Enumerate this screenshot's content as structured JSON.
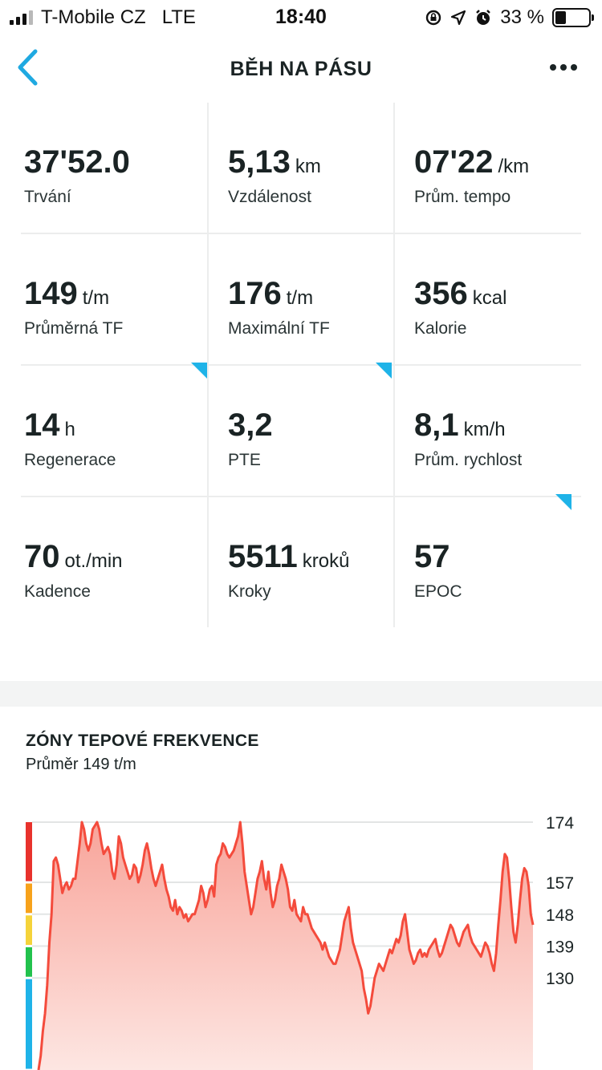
{
  "status_bar": {
    "carrier": "T-Mobile CZ",
    "network": "LTE",
    "time": "18:40",
    "battery": "33 %",
    "battery_level": 0.33
  },
  "nav": {
    "title": "BĚH NA PÁSU"
  },
  "stats": [
    {
      "value": "37'52.0",
      "unit": "",
      "label": "Trvání"
    },
    {
      "value": "5,13",
      "unit": "km",
      "label": "Vzdálenost"
    },
    {
      "value": "07'22",
      "unit": "/km",
      "label": "Prům. tempo"
    },
    {
      "value": "149",
      "unit": "t/m",
      "label": "Průměrná TF"
    },
    {
      "value": "176",
      "unit": "t/m",
      "label": "Maximální TF"
    },
    {
      "value": "356",
      "unit": "kcal",
      "label": "Kalorie"
    },
    {
      "value": "14",
      "unit": "h",
      "label": "Regenerace"
    },
    {
      "value": "3,2",
      "unit": "",
      "label": "PTE"
    },
    {
      "value": "8,1",
      "unit": "km/h",
      "label": "Prům. rychlost"
    },
    {
      "value": "70",
      "unit": "ot./min",
      "label": "Kadence"
    },
    {
      "value": "5511",
      "unit": "kroků",
      "label": "Kroky"
    },
    {
      "value": "57",
      "unit": "",
      "label": "EPOC"
    }
  ],
  "hr_zones": {
    "title": "ZÓNY TEPOVÉ FREKVENCE",
    "subtitle": "Průměr 149 t/m"
  },
  "chart_data": {
    "type": "area",
    "y_ticks": [
      174,
      157,
      148,
      139,
      130
    ],
    "ylim": [
      104,
      174
    ],
    "zone_colors": [
      "#e8322c",
      "#f7a21b",
      "#f5d33a",
      "#22c24d",
      "#1fb3e8"
    ],
    "zone_bounds": [
      174,
      157,
      148,
      139,
      130,
      104
    ],
    "line_color": "#f44b3c",
    "values": [
      104,
      108,
      115,
      120,
      128,
      140,
      148,
      163,
      164,
      162,
      158,
      154,
      156,
      157,
      155,
      156,
      158,
      158,
      163,
      168,
      174,
      172,
      168,
      166,
      168,
      172,
      173,
      174,
      172,
      168,
      165,
      166,
      167,
      165,
      160,
      158,
      162,
      170,
      168,
      164,
      162,
      160,
      158,
      159,
      162,
      161,
      157,
      159,
      162,
      166,
      168,
      165,
      161,
      158,
      156,
      158,
      160,
      162,
      158,
      155,
      153,
      150,
      149,
      152,
      148,
      150,
      149,
      147,
      148,
      146,
      147,
      148,
      148,
      150,
      152,
      156,
      154,
      150,
      152,
      155,
      156,
      153,
      162,
      164,
      165,
      168,
      167,
      165,
      164,
      165,
      166,
      168,
      170,
      174,
      168,
      160,
      156,
      152,
      148,
      150,
      154,
      158,
      160,
      163,
      158,
      155,
      160,
      154,
      150,
      152,
      156,
      158,
      162,
      160,
      158,
      155,
      150,
      149,
      152,
      148,
      147,
      146,
      150,
      148,
      148,
      146,
      144,
      143,
      142,
      141,
      140,
      138,
      140,
      138,
      136,
      135,
      134,
      134,
      136,
      138,
      142,
      146,
      148,
      150,
      144,
      140,
      138,
      136,
      134,
      132,
      127,
      124,
      120,
      122,
      126,
      130,
      132,
      134,
      133,
      132,
      134,
      136,
      138,
      137,
      139,
      141,
      140,
      142,
      146,
      148,
      143,
      138,
      136,
      134,
      135,
      137,
      138,
      136,
      137,
      136,
      138,
      139,
      140,
      141,
      138,
      136,
      137,
      139,
      141,
      143,
      145,
      144,
      142,
      140,
      139,
      141,
      143,
      144,
      145,
      142,
      140,
      139,
      138,
      137,
      136,
      138,
      140,
      139,
      137,
      134,
      132,
      137,
      145,
      152,
      160,
      165,
      164,
      158,
      150,
      143,
      140,
      145,
      152,
      158,
      161,
      160,
      156,
      148,
      145
    ],
    "gridlines": [
      174,
      157,
      148,
      139,
      130
    ]
  }
}
